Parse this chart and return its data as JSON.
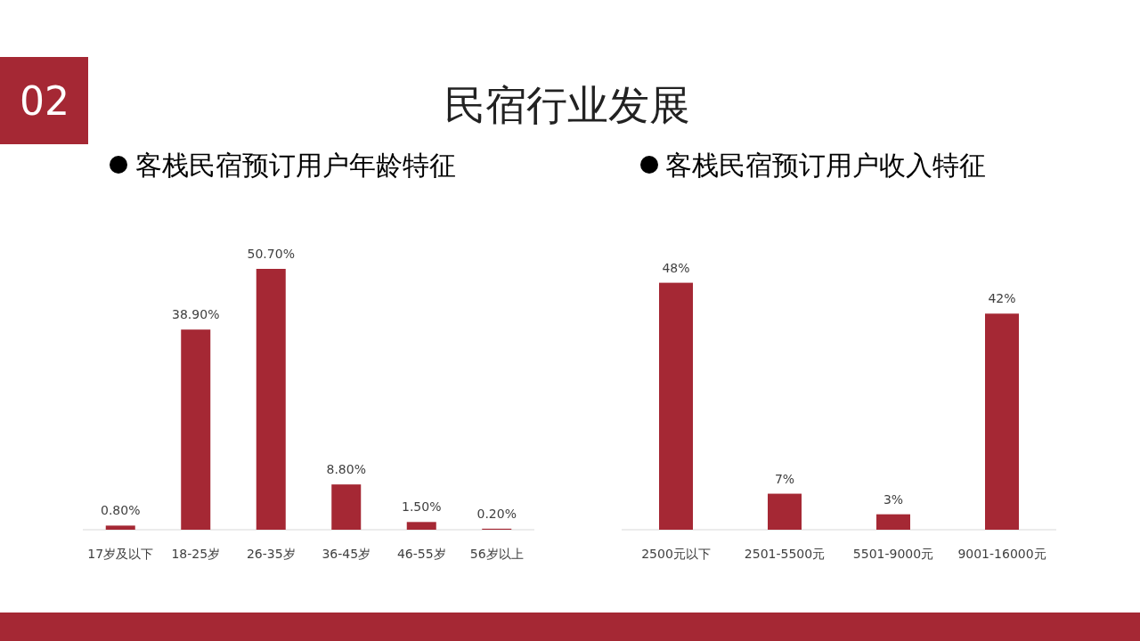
{
  "chart_data": [
    {
      "type": "bar",
      "title": "客栈民宿预订用户年龄特征",
      "annotations": [
        "02",
        "民宿行业发展"
      ],
      "categories": [
        "17岁及以下",
        "18-25岁",
        "26-35岁",
        "36-45岁",
        "46-55岁",
        "56岁以上"
      ],
      "values": [
        0.8,
        38.9,
        50.7,
        8.8,
        1.5,
        0.2
      ],
      "value_labels": [
        "0.80%",
        "38.90%",
        "50.70%",
        "8.80%",
        "1.50%",
        "0.20%"
      ],
      "color": "#a52834"
    },
    {
      "type": "bar",
      "title": "客栈民宿预订用户收入特征",
      "categories": [
        "2500元以下",
        "2501-5500元",
        "5501-9000元",
        "9001-16000元"
      ],
      "values": [
        48,
        7,
        3,
        42
      ],
      "value_labels": [
        "48%",
        "7%",
        "3%",
        "42%"
      ],
      "color": "#a52834"
    }
  ]
}
